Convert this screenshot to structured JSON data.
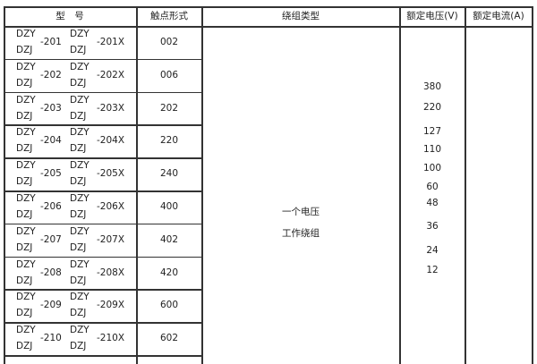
{
  "headers": {
    "model": "型　号",
    "contact": "触点形式",
    "winding": "绕组类型",
    "voltage": "额定电压(V)",
    "current": "额定电流(A)"
  },
  "rows": [
    {
      "prefix_a": "DZY",
      "prefix_b": "DZJ",
      "num": "-201",
      "prefix_c": "DZY",
      "prefix_d": "DZJ",
      "numx": "-201X",
      "contact": "002"
    },
    {
      "prefix_a": "DZY",
      "prefix_b": "DZJ",
      "num": "-202",
      "prefix_c": "DZY",
      "prefix_d": "DZJ",
      "numx": "-202X",
      "contact": "006"
    },
    {
      "prefix_a": "DZY",
      "prefix_b": "DZJ",
      "num": "-203",
      "prefix_c": "DZY",
      "prefix_d": "DZJ",
      "numx": "-203X",
      "contact": "202"
    },
    {
      "prefix_a": "DZY",
      "prefix_b": "DZJ",
      "num": "-204",
      "prefix_c": "DZY",
      "prefix_d": "DZJ",
      "numx": "-204X",
      "contact": "220"
    },
    {
      "prefix_a": "DZY",
      "prefix_b": "DZJ",
      "num": "-205",
      "prefix_c": "DZY",
      "prefix_d": "DZJ",
      "numx": "-205X",
      "contact": "240"
    },
    {
      "prefix_a": "DZY",
      "prefix_b": "DZJ",
      "num": "-206",
      "prefix_c": "DZY",
      "prefix_d": "DZJ",
      "numx": "-206X",
      "contact": "400"
    },
    {
      "prefix_a": "DZY",
      "prefix_b": "DZJ",
      "num": "-207",
      "prefix_c": "DZY",
      "prefix_d": "DZJ",
      "numx": "-207X",
      "contact": "402"
    },
    {
      "prefix_a": "DZY",
      "prefix_b": "DZJ",
      "num": "-208",
      "prefix_c": "DZY",
      "prefix_d": "DZJ",
      "numx": "-208X",
      "contact": "420"
    },
    {
      "prefix_a": "DZY",
      "prefix_b": "DZJ",
      "num": "-209",
      "prefix_c": "DZY",
      "prefix_d": "DZJ",
      "numx": "-209X",
      "contact": "600"
    },
    {
      "prefix_a": "DZY",
      "prefix_b": "DZJ",
      "num": "-210",
      "prefix_c": "DZY",
      "prefix_d": "DZJ",
      "numx": "-210X",
      "contact": "602"
    }
  ],
  "winding": {
    "line1": "一个电压",
    "line2": "工作绕组"
  },
  "voltages": [
    "380",
    "220",
    "127",
    "110",
    "100",
    "60",
    "48",
    "36",
    "24",
    "12"
  ]
}
